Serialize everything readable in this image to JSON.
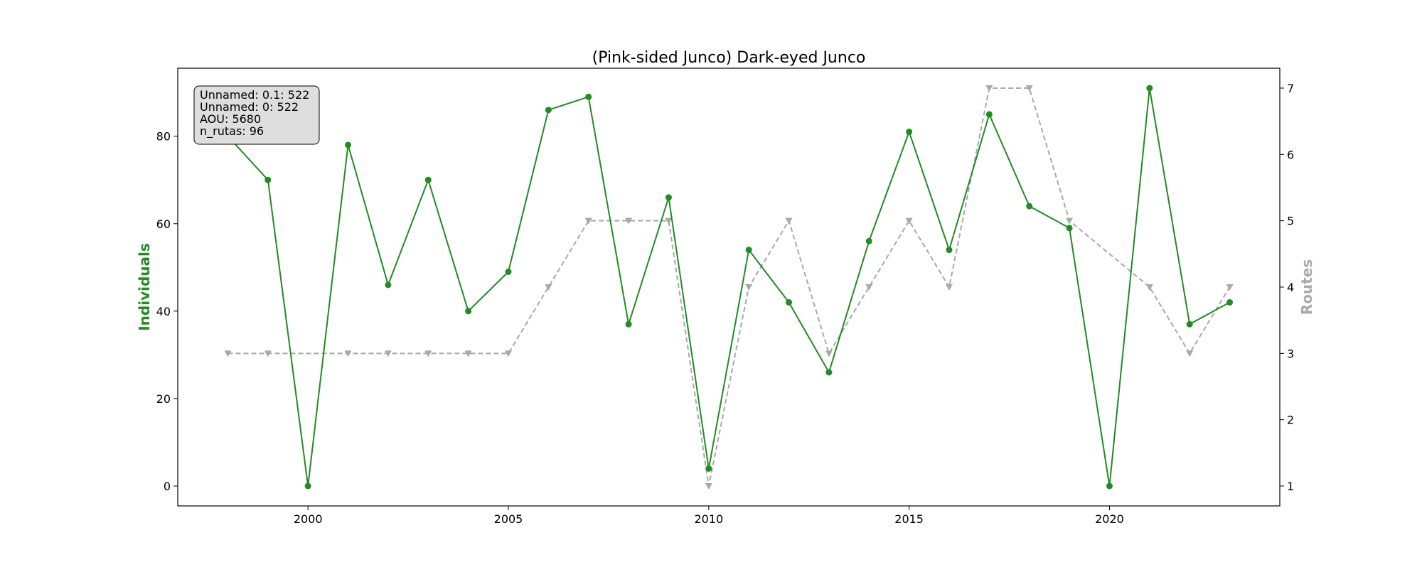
{
  "chart_data": {
    "type": "line",
    "title": "(Pink-sided Junco) Dark-eyed Junco",
    "xlabel": "",
    "ylabel_left": "Individuals",
    "ylabel_right": "Routes",
    "xlim": [
      1996.75,
      2024.25
    ],
    "ylim_left": [
      -4.55,
      95.55
    ],
    "ylim_right": [
      0.7,
      7.3
    ],
    "x_ticks": [
      2000,
      2005,
      2010,
      2015,
      2020
    ],
    "y_left_ticks": [
      0,
      20,
      40,
      60,
      80
    ],
    "y_right_ticks": [
      1,
      2,
      3,
      4,
      5,
      6,
      7
    ],
    "grid": false,
    "colors": {
      "individuals": "#228B22",
      "routes": "#A9A9A9"
    },
    "series": [
      {
        "name": "Individuals",
        "axis": "left",
        "style": "solid line with circle markers",
        "x": [
          1998,
          1999,
          2000,
          2001,
          2002,
          2003,
          2004,
          2005,
          2006,
          2007,
          2008,
          2009,
          2010,
          2011,
          2012,
          2013,
          2014,
          2015,
          2016,
          2017,
          2018,
          2019,
          2020,
          2021,
          2022,
          2023
        ],
        "y": [
          80,
          70,
          0,
          78,
          46,
          70,
          40,
          49,
          86,
          89,
          37,
          66,
          4,
          54,
          42,
          26,
          56,
          81,
          54,
          85,
          64,
          59,
          0,
          91,
          37,
          42
        ]
      },
      {
        "name": "Routes",
        "axis": "right",
        "style": "dashed line with triangle-down markers",
        "x": [
          1998,
          1999,
          2001,
          2002,
          2003,
          2004,
          2005,
          2006,
          2007,
          2008,
          2009,
          2010,
          2011,
          2012,
          2013,
          2014,
          2015,
          2016,
          2017,
          2018,
          2019,
          2021,
          2022,
          2023
        ],
        "y": [
          3,
          3,
          3,
          3,
          3,
          3,
          3,
          4,
          5,
          5,
          5,
          1,
          4,
          5,
          3,
          4,
          5,
          4,
          7,
          7,
          5,
          4,
          3,
          4
        ]
      }
    ],
    "info_box": {
      "placement": "top-left",
      "lines": [
        "Unnamed: 0.1: 522",
        "Unnamed: 0: 522",
        "AOU: 5680",
        "n_rutas: 96"
      ]
    }
  }
}
